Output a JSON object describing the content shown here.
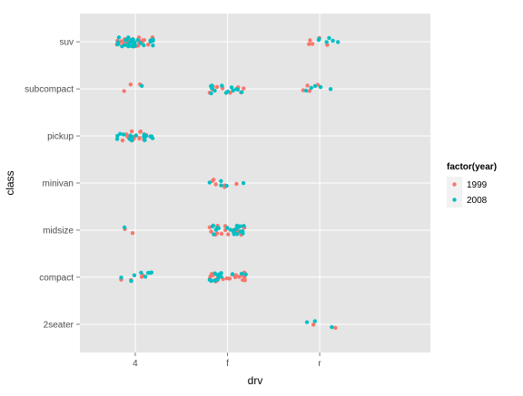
{
  "chart_data": {
    "type": "scatter",
    "title": "",
    "xlabel": "drv",
    "ylabel": "class",
    "x_categories": [
      "4",
      "f",
      "r"
    ],
    "y_categories": [
      "2seater",
      "compact",
      "midsize",
      "minivan",
      "pickup",
      "subcompact",
      "suv"
    ],
    "jitter": true,
    "grid": true,
    "legend": {
      "title": "factor(year)",
      "placement": "right"
    },
    "series": [
      {
        "name": "1999",
        "color": "#F8766D",
        "points": [
          {
            "drv": "4",
            "class": "suv",
            "count": 25
          },
          {
            "drv": "r",
            "class": "suv",
            "count": 5
          },
          {
            "drv": "4",
            "class": "subcompact",
            "count": 3
          },
          {
            "drv": "f",
            "class": "subcompact",
            "count": 9
          },
          {
            "drv": "r",
            "class": "subcompact",
            "count": 4
          },
          {
            "drv": "4",
            "class": "pickup",
            "count": 16
          },
          {
            "drv": "f",
            "class": "minivan",
            "count": 6
          },
          {
            "drv": "4",
            "class": "midsize",
            "count": 2
          },
          {
            "drv": "f",
            "class": "midsize",
            "count": 18
          },
          {
            "drv": "4",
            "class": "compact",
            "count": 4
          },
          {
            "drv": "f",
            "class": "compact",
            "count": 21
          },
          {
            "drv": "r",
            "class": "2seater",
            "count": 2
          }
        ]
      },
      {
        "name": "2008",
        "color": "#00BFC4",
        "points": [
          {
            "drv": "4",
            "class": "suv",
            "count": 26
          },
          {
            "drv": "r",
            "class": "suv",
            "count": 6
          },
          {
            "drv": "4",
            "class": "subcompact",
            "count": 1
          },
          {
            "drv": "f",
            "class": "subcompact",
            "count": 13
          },
          {
            "drv": "r",
            "class": "subcompact",
            "count": 5
          },
          {
            "drv": "4",
            "class": "pickup",
            "count": 17
          },
          {
            "drv": "f",
            "class": "minivan",
            "count": 5
          },
          {
            "drv": "4",
            "class": "midsize",
            "count": 1
          },
          {
            "drv": "f",
            "class": "midsize",
            "count": 20
          },
          {
            "drv": "4",
            "class": "compact",
            "count": 8
          },
          {
            "drv": "f",
            "class": "compact",
            "count": 14
          },
          {
            "drv": "r",
            "class": "2seater",
            "count": 3
          }
        ]
      }
    ]
  }
}
